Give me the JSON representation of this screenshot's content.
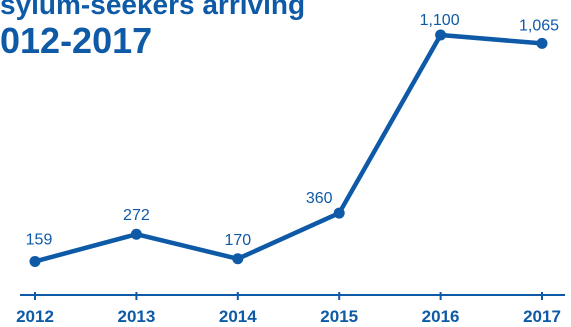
{
  "title": {
    "line1": "sylum-seekers arriving",
    "line2": "012-2017"
  },
  "colors": {
    "accent": "#0e5aa7",
    "axis": "#0e5aa7"
  },
  "chart_data": {
    "type": "line",
    "title": "sylum-seekers arriving 012-2017",
    "xlabel": "",
    "ylabel": "",
    "categories": [
      "2012",
      "2013",
      "2014",
      "2015",
      "2016",
      "2017"
    ],
    "series": [
      {
        "values": [
          159,
          272,
          170,
          360,
          1100,
          1065
        ],
        "labels": [
          "159",
          "272",
          "170",
          "360",
          "1,100",
          "1,065"
        ]
      }
    ],
    "ylim": [
      0,
      1200
    ],
    "grid": false,
    "legend": "none"
  }
}
